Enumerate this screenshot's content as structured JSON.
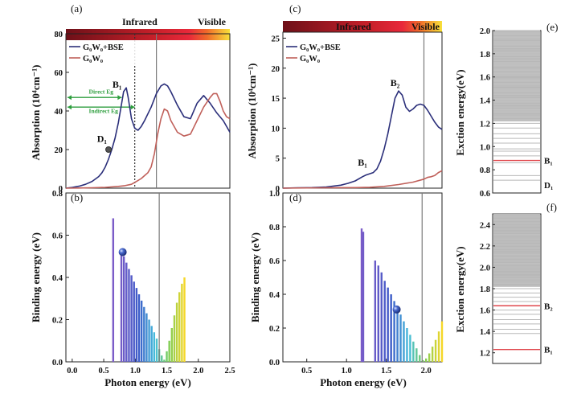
{
  "colors": {
    "bse": "#2b2f7a",
    "g0w0": "#c0605a",
    "vline": "#7a7a7a",
    "green_arrow": "#2e9e3e",
    "sphere": "#3556b3",
    "level_gray": "#b8b8b8",
    "level_red": "#e0474c"
  },
  "chart_data": [
    {
      "id": "a",
      "type": "line",
      "panel_label": "(a)",
      "band": {
        "left_label": "Infrared",
        "right_label": "Visible"
      },
      "xlim": [
        0,
        2.5
      ],
      "ylim": [
        0,
        80
      ],
      "yticks": [
        0,
        20,
        40,
        60,
        80
      ],
      "ylabel": "Absorption (10⁴cm⁻¹)",
      "vlines": [
        {
          "x": 1.05,
          "style": "dotted"
        },
        {
          "x": 1.38,
          "style": "solid"
        }
      ],
      "legend": [
        "G₀W₀+BSE",
        "G₀W₀"
      ],
      "series": [
        {
          "name": "G₀W₀+BSE",
          "x": [
            0,
            0.1,
            0.2,
            0.3,
            0.4,
            0.5,
            0.55,
            0.6,
            0.65,
            0.7,
            0.75,
            0.8,
            0.85,
            0.88,
            0.92,
            0.95,
            1.0,
            1.05,
            1.1,
            1.15,
            1.2,
            1.3,
            1.38,
            1.45,
            1.5,
            1.55,
            1.6,
            1.7,
            1.8,
            1.9,
            2.0,
            2.1,
            2.2,
            2.3,
            2.4,
            2.5
          ],
          "y": [
            0,
            0.4,
            1,
            2,
            3.5,
            6,
            8,
            11,
            15,
            20,
            26,
            34,
            44,
            50,
            52,
            47,
            36,
            31,
            30,
            32,
            35,
            42,
            49,
            53,
            54,
            53,
            50,
            43,
            37,
            36,
            44,
            48,
            44,
            39,
            35,
            29
          ]
        },
        {
          "name": "G₀W₀",
          "x": [
            0,
            0.2,
            0.4,
            0.6,
            0.8,
            0.9,
            1.0,
            1.05,
            1.1,
            1.15,
            1.2,
            1.25,
            1.3,
            1.35,
            1.4,
            1.45,
            1.5,
            1.55,
            1.6,
            1.7,
            1.8,
            1.9,
            2.0,
            2.1,
            2.2,
            2.25,
            2.3,
            2.35,
            2.4,
            2.45,
            2.5
          ],
          "y": [
            0,
            0.1,
            0.2,
            0.4,
            0.9,
            1.3,
            2,
            3,
            4,
            5,
            6.5,
            8,
            11,
            18,
            28,
            36,
            41,
            40,
            35,
            29,
            27,
            28,
            35,
            42,
            47,
            49,
            49,
            45,
            40,
            37,
            36
          ]
        }
      ],
      "annotations": [
        {
          "text": "B₁",
          "x": 0.78,
          "y": 52
        },
        {
          "text": "D₁",
          "x": 0.55,
          "y": 24
        },
        {
          "text": "Direct Eg",
          "x": 0.35,
          "y": 49
        },
        {
          "text": "Indirect Eg",
          "x": 0.35,
          "y": 39
        }
      ],
      "markers": [
        {
          "x": 0.65,
          "y": 20
        }
      ],
      "arrows": [
        {
          "y": 47,
          "x0": 0,
          "x1": 0.85
        },
        {
          "y": 42,
          "x0": 0,
          "x1": 1.05
        }
      ]
    },
    {
      "id": "b",
      "type": "bar",
      "panel_label": "(b)",
      "xlim": [
        -0.1,
        2.5
      ],
      "ylim": [
        0,
        0.8
      ],
      "xticks": [
        0.0,
        0.5,
        1.0,
        1.5,
        2.0,
        2.5
      ],
      "yticks": [
        0.0,
        0.2,
        0.4,
        0.6,
        0.8
      ],
      "xlabel": "Photon energy (eV)",
      "ylabel": "Binding energy (eV)",
      "vlines": [
        {
          "x": 1.38,
          "style": "solid"
        }
      ],
      "bars": {
        "x": [
          0.65,
          0.78,
          0.82,
          0.86,
          0.9,
          0.94,
          0.98,
          1.02,
          1.06,
          1.1,
          1.14,
          1.18,
          1.22,
          1.26,
          1.3,
          1.34,
          1.38,
          1.42,
          1.46,
          1.5,
          1.54,
          1.58,
          1.62,
          1.66,
          1.7,
          1.74,
          1.78
        ],
        "y": [
          0.68,
          0.52,
          0.5,
          0.47,
          0.44,
          0.41,
          0.38,
          0.35,
          0.32,
          0.29,
          0.26,
          0.23,
          0.2,
          0.17,
          0.14,
          0.11,
          0.06,
          0.03,
          0.01,
          0.05,
          0.1,
          0.16,
          0.22,
          0.28,
          0.33,
          0.37,
          0.4
        ]
      },
      "markers": [
        {
          "x": 0.8,
          "y": 0.52
        }
      ]
    },
    {
      "id": "c",
      "type": "line",
      "panel_label": "(c)",
      "band": {
        "left_label": "Infrared",
        "right_label": "Visible"
      },
      "xlim": [
        0,
        2.2
      ],
      "ylim": [
        0,
        26
      ],
      "yticks": [
        0,
        5,
        10,
        15,
        20,
        25
      ],
      "ylabel": "Absorption (10⁴cm⁻¹)",
      "vlines": [
        {
          "x": 1.95,
          "style": "solid"
        }
      ],
      "legend": [
        "G₀W₀+BSE",
        "G₀W₀"
      ],
      "series": [
        {
          "name": "G₀W₀+BSE",
          "x": [
            0,
            0.2,
            0.4,
            0.6,
            0.8,
            0.9,
            1.0,
            1.1,
            1.15,
            1.2,
            1.25,
            1.3,
            1.35,
            1.4,
            1.45,
            1.5,
            1.55,
            1.6,
            1.65,
            1.7,
            1.75,
            1.8,
            1.85,
            1.9,
            1.95,
            2.0,
            2.05,
            2.1,
            2.15,
            2.2
          ],
          "y": [
            0,
            0.05,
            0.1,
            0.2,
            0.5,
            0.8,
            1.2,
            1.9,
            2.2,
            2.4,
            2.6,
            3.2,
            4.5,
            6.5,
            9,
            12,
            15,
            16.2,
            15.5,
            13.5,
            12.8,
            13.2,
            13.8,
            14,
            13.8,
            13,
            12,
            11,
            10.2,
            9.8
          ]
        },
        {
          "name": "G₀W₀",
          "x": [
            0,
            0.5,
            1.0,
            1.2,
            1.4,
            1.6,
            1.8,
            1.95,
            2.0,
            2.05,
            2.1,
            2.15,
            2.2
          ],
          "y": [
            0,
            0.05,
            0.1,
            0.15,
            0.3,
            0.6,
            1.0,
            1.5,
            1.8,
            1.9,
            2.1,
            2.6,
            2.9
          ]
        }
      ],
      "annotations": [
        {
          "text": "B₁",
          "x": 1.1,
          "y": 3.2
        },
        {
          "text": "B₂",
          "x": 1.55,
          "y": 16.5
        }
      ]
    },
    {
      "id": "d",
      "type": "bar",
      "panel_label": "(d)",
      "xlim": [
        0.2,
        2.2
      ],
      "ylim": [
        0,
        1.0
      ],
      "xticks": [
        0.5,
        1.0,
        1.5,
        2.0
      ],
      "yticks": [
        0.0,
        0.2,
        0.4,
        0.6,
        0.8,
        1.0
      ],
      "xlabel": "Photon energy (eV)",
      "ylabel": "Binding energy (eV)",
      "vlines": [
        {
          "x": 1.95,
          "style": "solid"
        }
      ],
      "bars": {
        "x": [
          1.19,
          1.21,
          1.36,
          1.4,
          1.44,
          1.48,
          1.52,
          1.56,
          1.6,
          1.64,
          1.68,
          1.72,
          1.76,
          1.8,
          1.84,
          1.88,
          1.92,
          1.96,
          2.0,
          2.04,
          2.08,
          2.12,
          2.16,
          2.2
        ],
        "y": [
          0.79,
          0.77,
          0.6,
          0.57,
          0.53,
          0.48,
          0.44,
          0.4,
          0.36,
          0.32,
          0.28,
          0.24,
          0.2,
          0.16,
          0.12,
          0.08,
          0.04,
          0.01,
          0.02,
          0.05,
          0.09,
          0.13,
          0.18,
          0.24
        ]
      },
      "markers": [
        {
          "x": 1.63,
          "y": 0.31
        }
      ]
    },
    {
      "id": "e",
      "type": "table",
      "panel_label": "(e)",
      "ylim": [
        0.6,
        2.0
      ],
      "yticks": [
        0.6,
        0.8,
        1.0,
        1.2,
        1.4,
        1.6,
        1.8,
        2.0
      ],
      "ylabel": "Exction energy(eV)",
      "gray_levels": [
        0.71,
        0.75,
        0.86,
        0.92,
        0.96,
        0.98,
        1.03,
        1.07,
        1.11,
        1.16,
        1.2
      ],
      "dense_band": [
        1.22,
        2.0
      ],
      "red_levels": [
        0.88
      ],
      "labels": [
        {
          "text": "B₁",
          "y": 0.88
        },
        {
          "text": "D₁",
          "y": 0.71
        }
      ]
    },
    {
      "id": "f",
      "type": "table",
      "panel_label": "(f)",
      "ylim": [
        1.1,
        2.5
      ],
      "yticks": [
        1.2,
        1.4,
        1.6,
        1.8,
        2.0,
        2.2,
        2.4
      ],
      "ylabel": "Exction energy(eV)",
      "gray_levels": [
        1.38,
        1.42,
        1.47,
        1.51,
        1.56,
        1.6,
        1.68,
        1.72,
        1.76,
        1.8
      ],
      "dense_band": [
        1.82,
        2.5
      ],
      "red_levels": [
        1.23,
        1.64
      ],
      "labels": [
        {
          "text": "B₂",
          "y": 1.64
        },
        {
          "text": "B₁",
          "y": 1.23
        }
      ]
    }
  ]
}
